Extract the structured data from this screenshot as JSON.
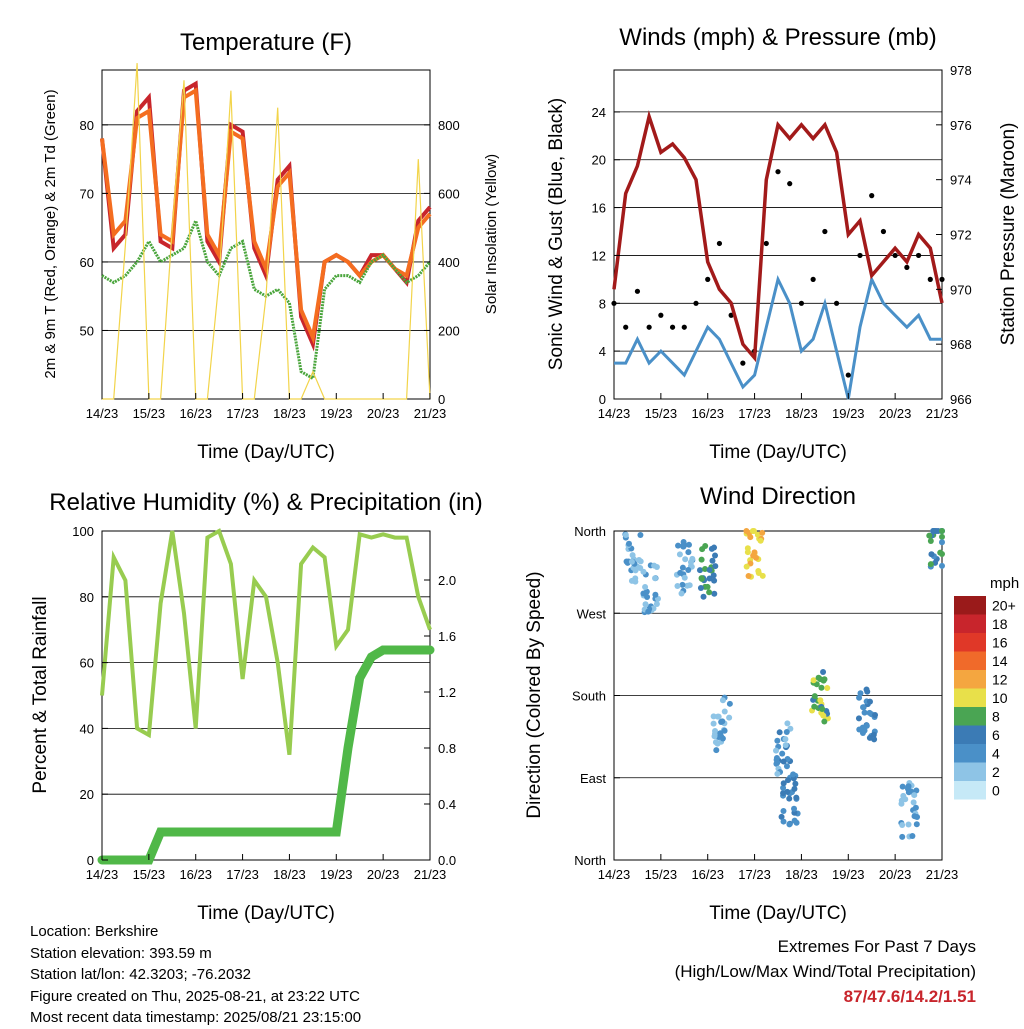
{
  "xtick_labels": [
    "14/23",
    "15/23",
    "16/23",
    "17/23",
    "18/23",
    "19/23",
    "20/23",
    "21/23"
  ],
  "chart_data": [
    {
      "type": "line",
      "title": "Temperature (F)",
      "xlabel": "Time (Day/UTC)",
      "ylabel": "2m & 9m T (Red, Orange) & 2m Td (Green)",
      "y2label": "Solar Insolation (Yellow)",
      "ylim": [
        40,
        88
      ],
      "y2lim": [
        0,
        960
      ],
      "yticks": [
        50,
        60,
        70,
        80
      ],
      "y2ticks": [
        0,
        200,
        400,
        600,
        800
      ],
      "grid": true,
      "x_days": [
        0,
        0.25,
        0.5,
        0.75,
        1,
        1.25,
        1.5,
        1.75,
        2,
        2.25,
        2.5,
        2.75,
        3,
        3.25,
        3.5,
        3.75,
        4,
        4.25,
        4.5,
        4.75,
        5,
        5.25,
        5.5,
        5.75,
        6,
        6.25,
        6.5,
        6.75,
        7
      ],
      "series": [
        {
          "name": "2m T",
          "color": "#c8252c",
          "values": [
            78,
            62,
            64,
            82,
            84,
            63,
            62,
            85,
            86,
            63,
            60,
            80,
            79,
            62,
            58,
            72,
            74,
            52,
            48,
            60,
            61,
            60,
            58,
            61,
            61,
            59,
            57,
            66,
            68
          ]
        },
        {
          "name": "9m T",
          "color": "#f46d20",
          "values": [
            78,
            64,
            66,
            81,
            82,
            64,
            63,
            84,
            85,
            64,
            61,
            79,
            78,
            63,
            59,
            71,
            73,
            53,
            49,
            60,
            61,
            60,
            58,
            60,
            61,
            59,
            58,
            65,
            67
          ]
        },
        {
          "name": "2m Td",
          "color": "#4aa53c",
          "values": [
            58,
            57,
            58,
            60,
            63,
            60,
            61,
            62,
            66,
            60,
            58,
            62,
            63,
            56,
            55,
            56,
            54,
            44,
            43,
            56,
            58,
            58,
            57,
            60,
            61,
            59,
            57,
            58,
            60
          ]
        },
        {
          "name": "Solar",
          "color": "#f2d44a",
          "values": [
            0,
            0,
            450,
            980,
            0,
            0,
            500,
            930,
            0,
            0,
            350,
            900,
            0,
            0,
            300,
            850,
            0,
            0,
            80,
            0,
            0,
            0,
            0,
            0,
            0,
            0,
            0,
            700,
            0
          ]
        }
      ]
    },
    {
      "type": "scatter",
      "title": "Winds (mph) & Pressure (mb)",
      "xlabel": "Time (Day/UTC)",
      "ylabel": "Sonic Wind & Gust (Blue, Black)",
      "y2label": "Station Pressure (Maroon)",
      "ylim": [
        0,
        27.5
      ],
      "y2lim": [
        966,
        978
      ],
      "yticks": [
        0,
        4,
        8,
        12,
        16,
        20,
        24
      ],
      "y2ticks": [
        966,
        968,
        970,
        972,
        974,
        976,
        978
      ],
      "grid": true,
      "x_days": [
        0,
        0.25,
        0.5,
        0.75,
        1,
        1.25,
        1.5,
        1.75,
        2,
        2.25,
        2.5,
        2.75,
        3,
        3.25,
        3.5,
        3.75,
        4,
        4.25,
        4.5,
        4.75,
        5,
        5.25,
        5.5,
        5.75,
        6,
        6.25,
        6.5,
        6.75,
        7
      ],
      "series": [
        {
          "name": "Wind",
          "color": "#4a90c8",
          "values": [
            3,
            3,
            5,
            3,
            4,
            3,
            2,
            4,
            6,
            5,
            3,
            1,
            2,
            6,
            10,
            8,
            4,
            5,
            8,
            4,
            0,
            6,
            10,
            8,
            7,
            6,
            7,
            5,
            5
          ]
        },
        {
          "name": "Gust",
          "color": "#000000",
          "values": [
            8,
            6,
            9,
            6,
            7,
            6,
            6,
            8,
            10,
            13,
            7,
            3,
            4,
            13,
            19,
            18,
            8,
            10,
            14,
            8,
            2,
            12,
            17,
            14,
            12,
            11,
            12,
            10,
            10
          ]
        },
        {
          "name": "Pressure",
          "color": "#a21a1a",
          "values": [
            970,
            973.5,
            974.5,
            976.3,
            975,
            975.3,
            974.8,
            974,
            971,
            970,
            969.5,
            968,
            967.5,
            974,
            976,
            975.5,
            976,
            975.5,
            976,
            975,
            972,
            972.5,
            970.5,
            971,
            971.5,
            971,
            972,
            971.5,
            969.5
          ]
        }
      ]
    },
    {
      "type": "line",
      "title": "Relative Humidity (%) & Precipitation (in)",
      "xlabel": "Time (Day/UTC)",
      "ylabel": "Percent & Total Rainfall",
      "ylim": [
        0,
        100
      ],
      "y2lim": [
        0,
        2.35
      ],
      "yticks": [
        0,
        20,
        40,
        60,
        80,
        100
      ],
      "y2ticks": [
        0.0,
        0.4,
        0.8,
        1.2,
        1.6,
        2.0
      ],
      "grid": true,
      "x_days": [
        0,
        0.25,
        0.5,
        0.75,
        1,
        1.25,
        1.5,
        1.75,
        2,
        2.25,
        2.5,
        2.75,
        3,
        3.25,
        3.5,
        3.75,
        4,
        4.25,
        4.5,
        4.75,
        5,
        5.25,
        5.5,
        5.75,
        6,
        6.25,
        6.5,
        6.75,
        7
      ],
      "series": [
        {
          "name": "RH",
          "color": "#98cc50",
          "values": [
            50,
            92,
            85,
            40,
            38,
            78,
            100,
            75,
            40,
            98,
            100,
            90,
            55,
            85,
            80,
            60,
            32,
            90,
            95,
            92,
            65,
            70,
            99,
            98,
            99,
            98,
            98,
            80,
            70
          ]
        },
        {
          "name": "Precip",
          "color": "#50b848",
          "values": [
            0,
            0,
            0,
            0,
            0,
            0.2,
            0.2,
            0.2,
            0.2,
            0.2,
            0.2,
            0.2,
            0.2,
            0.2,
            0.2,
            0.2,
            0.2,
            0.2,
            0.2,
            0.2,
            0.2,
            0.8,
            1.3,
            1.45,
            1.5,
            1.5,
            1.5,
            1.5,
            1.5
          ]
        }
      ]
    },
    {
      "type": "scatter",
      "title": "Wind Direction",
      "xlabel": "Time (Day/UTC)",
      "ylabel": "Direction (Colored By Speed)",
      "ylim": [
        0,
        360
      ],
      "ytick_labels": [
        "North",
        "East",
        "South",
        "West",
        "North"
      ],
      "legend_title": "mph",
      "legend_labels": [
        "0",
        "2",
        "4",
        "6",
        "8",
        "10",
        "12",
        "14",
        "16",
        "18",
        "20+"
      ],
      "legend_colors": [
        "#c6e9f7",
        "#8ec4e6",
        "#4a90c8",
        "#3b7bb5",
        "#4aa553",
        "#e8e04a",
        "#f4a640",
        "#f06a2a",
        "#e03828",
        "#c8252c",
        "#9a1a1a"
      ],
      "clusters": [
        {
          "x": 0.4,
          "dir": 330,
          "speed": 3
        },
        {
          "x": 0.8,
          "dir": 300,
          "speed": 3
        },
        {
          "x": 1.5,
          "dir": 320,
          "speed": 3
        },
        {
          "x": 2.0,
          "dir": 315,
          "speed": 7
        },
        {
          "x": 2.3,
          "dir": 150,
          "speed": 3
        },
        {
          "x": 3.0,
          "dir": 340,
          "speed": 11
        },
        {
          "x": 3.6,
          "dir": 120,
          "speed": 4
        },
        {
          "x": 3.75,
          "dir": 65,
          "speed": 5
        },
        {
          "x": 4.4,
          "dir": 180,
          "speed": 8
        },
        {
          "x": 5.4,
          "dir": 160,
          "speed": 5
        },
        {
          "x": 6.3,
          "dir": 55,
          "speed": 3
        },
        {
          "x": 6.9,
          "dir": 350,
          "speed": 6
        }
      ]
    }
  ],
  "info": {
    "location": "Location: Berkshire",
    "elevation": "Station elevation: 393.59 m",
    "latlon": "Station lat/lon: 42.3203; -76.2032",
    "created": "Figure created on Thu, 2025-08-21, at 23:22 UTC",
    "recent": "Most recent data timestamp: 2025/08/21 23:15:00"
  },
  "extremes": {
    "line1": "Extremes For Past 7 Days",
    "line2": "(High/Low/Max Wind/Total Precipitation)",
    "values": "87/47.6/14.2/1.51"
  }
}
